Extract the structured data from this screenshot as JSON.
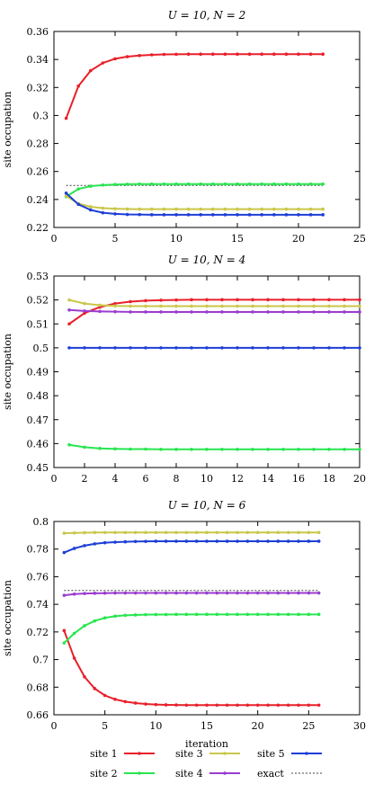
{
  "colors": {
    "site1": "#e8202a",
    "site2": "#27e64f",
    "site3": "#c9c74a",
    "site4": "#9a3ccf",
    "site5": "#1d3fd6",
    "exact": "#444444"
  },
  "legend": {
    "items": [
      {
        "key": "site1",
        "label": "site 1"
      },
      {
        "key": "site2",
        "label": "site 2"
      },
      {
        "key": "site3",
        "label": "site 3"
      },
      {
        "key": "site4",
        "label": "site 4"
      },
      {
        "key": "site5",
        "label": "site 5"
      },
      {
        "key": "exact",
        "label": "exact"
      }
    ]
  },
  "chart_data": [
    {
      "type": "line",
      "title": "U = 10, N = 2",
      "xlabel": "",
      "ylabel": "site occupation",
      "xlim": [
        0,
        25
      ],
      "ylim": [
        0.22,
        0.36
      ],
      "xticks": [
        0,
        5,
        10,
        15,
        20,
        25
      ],
      "yticks": [
        0.22,
        0.24,
        0.26,
        0.28,
        0.3,
        0.32,
        0.34,
        0.36
      ],
      "ytick_labels": [
        "0.22",
        "0.24",
        "0.26",
        "0.28",
        "0.3",
        "0.32",
        "0.34",
        "0.36"
      ],
      "x": [
        1,
        2,
        3,
        4,
        5,
        6,
        7,
        8,
        9,
        10,
        11,
        12,
        13,
        14,
        15,
        16,
        17,
        18,
        19,
        20,
        21,
        22
      ],
      "series": [
        {
          "key": "site1",
          "values": [
            0.298,
            0.321,
            0.332,
            0.3375,
            0.3405,
            0.342,
            0.3428,
            0.3433,
            0.3436,
            0.3437,
            0.3438,
            0.3438,
            0.3438,
            0.3438,
            0.3438,
            0.3438,
            0.3438,
            0.3438,
            0.3438,
            0.3438,
            0.3438,
            0.3438
          ]
        },
        {
          "key": "site2",
          "values": [
            0.242,
            0.2475,
            0.2495,
            0.2503,
            0.2507,
            0.2509,
            0.251,
            0.251,
            0.251,
            0.251,
            0.251,
            0.251,
            0.251,
            0.251,
            0.251,
            0.251,
            0.251,
            0.251,
            0.251,
            0.251,
            0.251,
            0.251
          ]
        },
        {
          "key": "site3",
          "values": [
            0.2425,
            0.237,
            0.2348,
            0.2338,
            0.2334,
            0.2332,
            0.2331,
            0.2331,
            0.2331,
            0.2331,
            0.2331,
            0.2331,
            0.2331,
            0.2331,
            0.2331,
            0.2331,
            0.2331,
            0.2331,
            0.2331,
            0.2331,
            0.2331,
            0.2331
          ]
        },
        {
          "key": "site5",
          "values": [
            0.2445,
            0.2365,
            0.2325,
            0.2305,
            0.2297,
            0.2293,
            0.2292,
            0.2291,
            0.2291,
            0.2291,
            0.2291,
            0.2291,
            0.2291,
            0.2291,
            0.2291,
            0.2291,
            0.2291,
            0.2291,
            0.2291,
            0.2291,
            0.2291,
            0.2291
          ]
        }
      ],
      "exact": [
        {
          "x0": 1,
          "x1": 22,
          "y": 0.25
        }
      ]
    },
    {
      "type": "line",
      "title": "U = 10, N = 4",
      "xlabel": "",
      "ylabel": "site occupation",
      "xlim": [
        0,
        20
      ],
      "ylim": [
        0.45,
        0.53
      ],
      "xticks": [
        0,
        2,
        4,
        6,
        8,
        10,
        12,
        14,
        16,
        18,
        20
      ],
      "yticks": [
        0.45,
        0.46,
        0.47,
        0.48,
        0.49,
        0.5,
        0.51,
        0.52,
        0.53
      ],
      "ytick_labels": [
        "0.45",
        "0.46",
        "0.47",
        "0.48",
        "0.49",
        "0.5",
        "0.51",
        "0.52",
        "0.53"
      ],
      "x": [
        1,
        2,
        3,
        4,
        5,
        6,
        7,
        8,
        9,
        10,
        11,
        12,
        13,
        14,
        15,
        16,
        17,
        18,
        19,
        20
      ],
      "series": [
        {
          "key": "site1",
          "values": [
            0.51,
            0.5145,
            0.517,
            0.5185,
            0.5193,
            0.5197,
            0.5199,
            0.52,
            0.5201,
            0.5201,
            0.5201,
            0.5201,
            0.5201,
            0.5201,
            0.5201,
            0.5201,
            0.5201,
            0.5201,
            0.5201,
            0.5201
          ]
        },
        {
          "key": "site2",
          "values": [
            0.4595,
            0.4585,
            0.458,
            0.4578,
            0.4577,
            0.4577,
            0.4576,
            0.4576,
            0.4576,
            0.4576,
            0.4576,
            0.4576,
            0.4576,
            0.4576,
            0.4576,
            0.4576,
            0.4576,
            0.4576,
            0.4576,
            0.4576
          ]
        },
        {
          "key": "site3",
          "values": [
            0.52,
            0.5185,
            0.5178,
            0.5175,
            0.5174,
            0.5174,
            0.5174,
            0.5174,
            0.5174,
            0.5174,
            0.5174,
            0.5174,
            0.5174,
            0.5174,
            0.5174,
            0.5174,
            0.5174,
            0.5174,
            0.5174,
            0.5174
          ]
        },
        {
          "key": "site4",
          "values": [
            0.5158,
            0.5154,
            0.5152,
            0.5151,
            0.515,
            0.515,
            0.515,
            0.515,
            0.515,
            0.515,
            0.515,
            0.515,
            0.515,
            0.515,
            0.515,
            0.515,
            0.515,
            0.515,
            0.515,
            0.515
          ]
        },
        {
          "key": "site5",
          "values": [
            0.5,
            0.5,
            0.5,
            0.5,
            0.5,
            0.5,
            0.5,
            0.5,
            0.5,
            0.5,
            0.5,
            0.5,
            0.5,
            0.5,
            0.5,
            0.5,
            0.5,
            0.5,
            0.5,
            0.5
          ]
        }
      ],
      "exact": []
    },
    {
      "type": "line",
      "title": "U = 10, N = 6",
      "xlabel": "iteration",
      "ylabel": "site occupation",
      "xlim": [
        0,
        30
      ],
      "ylim": [
        0.66,
        0.8
      ],
      "xticks": [
        0,
        5,
        10,
        15,
        20,
        25,
        30
      ],
      "yticks": [
        0.66,
        0.68,
        0.7,
        0.72,
        0.74,
        0.76,
        0.78,
        0.8
      ],
      "ytick_labels": [
        "0.66",
        "0.68",
        "0.7",
        "0.72",
        "0.74",
        "0.76",
        "0.78",
        "0.8"
      ],
      "x": [
        1,
        2,
        3,
        4,
        5,
        6,
        7,
        8,
        9,
        10,
        11,
        12,
        13,
        14,
        15,
        16,
        17,
        18,
        19,
        20,
        21,
        22,
        23,
        24,
        25,
        26
      ],
      "series": [
        {
          "key": "site1",
          "values": [
            0.721,
            0.701,
            0.6875,
            0.679,
            0.674,
            0.6712,
            0.6695,
            0.6685,
            0.6678,
            0.6674,
            0.6672,
            0.6671,
            0.667,
            0.667,
            0.667,
            0.667,
            0.667,
            0.667,
            0.667,
            0.667,
            0.667,
            0.667,
            0.667,
            0.667,
            0.667,
            0.667
          ]
        },
        {
          "key": "site2",
          "values": [
            0.712,
            0.719,
            0.7245,
            0.728,
            0.7302,
            0.7314,
            0.732,
            0.7323,
            0.7325,
            0.7326,
            0.7326,
            0.7327,
            0.7327,
            0.7327,
            0.7327,
            0.7327,
            0.7327,
            0.7327,
            0.7327,
            0.7327,
            0.7327,
            0.7327,
            0.7327,
            0.7327,
            0.7327,
            0.7327
          ]
        },
        {
          "key": "site3",
          "values": [
            0.7915,
            0.7917,
            0.7919,
            0.792,
            0.792,
            0.792,
            0.792,
            0.792,
            0.792,
            0.792,
            0.792,
            0.792,
            0.792,
            0.792,
            0.792,
            0.792,
            0.792,
            0.792,
            0.792,
            0.792,
            0.792,
            0.792,
            0.792,
            0.792,
            0.792,
            0.792
          ]
        },
        {
          "key": "site4",
          "values": [
            0.7465,
            0.7474,
            0.7478,
            0.748,
            0.7481,
            0.7482,
            0.7482,
            0.7482,
            0.7482,
            0.7482,
            0.7482,
            0.7482,
            0.7482,
            0.7482,
            0.7482,
            0.7482,
            0.7482,
            0.7482,
            0.7482,
            0.7482,
            0.7482,
            0.7482,
            0.7482,
            0.7482,
            0.7482,
            0.7482
          ]
        },
        {
          "key": "site5",
          "values": [
            0.7775,
            0.7805,
            0.7825,
            0.7838,
            0.7846,
            0.785,
            0.7853,
            0.7855,
            0.7856,
            0.7857,
            0.7857,
            0.7857,
            0.7857,
            0.7857,
            0.7857,
            0.7857,
            0.7857,
            0.7857,
            0.7857,
            0.7857,
            0.7857,
            0.7857,
            0.7857,
            0.7857,
            0.7857,
            0.7857
          ]
        }
      ],
      "exact": [
        {
          "x0": 1,
          "x1": 26,
          "y": 0.75
        }
      ]
    }
  ]
}
